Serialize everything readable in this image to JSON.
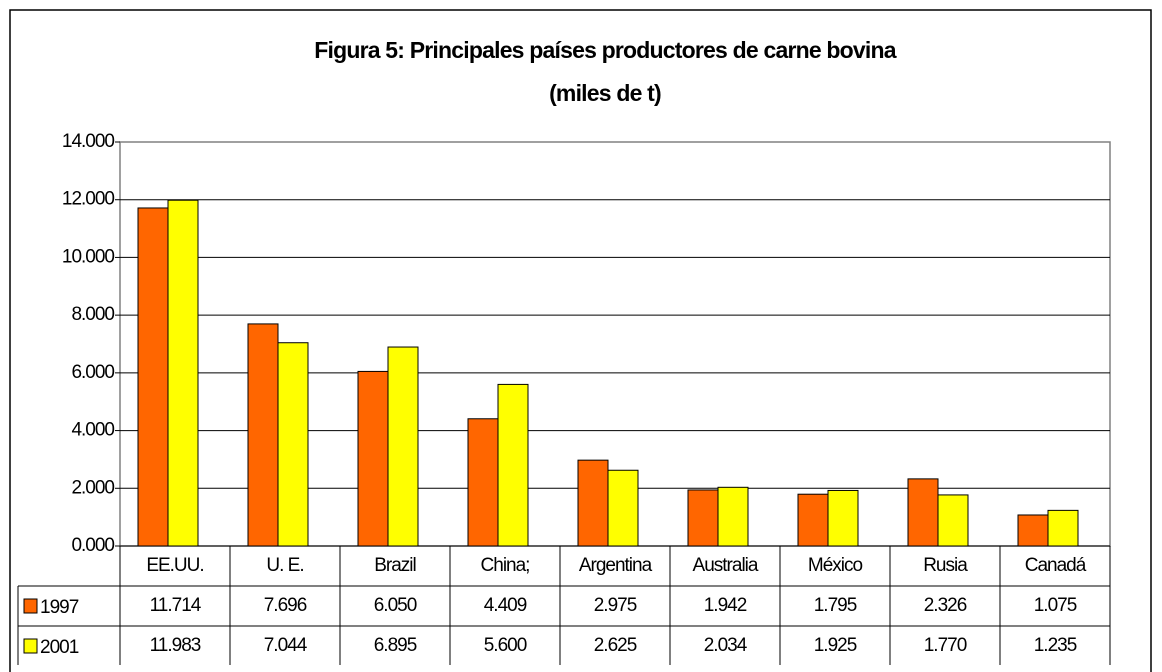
{
  "chart_data": {
    "type": "bar",
    "title": [
      "Figura  5: Principales países productores de carne bovina",
      "(miles de t)"
    ],
    "categories": [
      "EE.UU.",
      "U. E.",
      "Brazil",
      "China;",
      "Argentina",
      "Australia",
      "México",
      "Rusia",
      "Canadá"
    ],
    "series": [
      {
        "name": "1997",
        "color": "#ff6600",
        "values": [
          11714,
          7696,
          6050,
          4409,
          2975,
          1942,
          1795,
          2326,
          1075
        ],
        "value_labels": [
          "11.714",
          "7.696",
          "6.050",
          "4.409",
          "2.975",
          "1.942",
          "1.795",
          "2.326",
          "1.075"
        ]
      },
      {
        "name": "2001",
        "color": "#ffff00",
        "values": [
          11983,
          7044,
          6895,
          5600,
          2625,
          2034,
          1925,
          1770,
          1235
        ],
        "value_labels": [
          "11.983",
          "7.044",
          "6.895",
          "5.600",
          "2.625",
          "2.034",
          "1.925",
          "1.770",
          "1.235"
        ]
      }
    ],
    "ylim": [
      0,
      14000
    ],
    "yticks": [
      {
        "value": 0,
        "label": "0.000"
      },
      {
        "value": 2000,
        "label": "2.000"
      },
      {
        "value": 4000,
        "label": "4.000"
      },
      {
        "value": 6000,
        "label": "6.000"
      },
      {
        "value": 8000,
        "label": "8.000"
      },
      {
        "value": 10000,
        "label": "10.000"
      },
      {
        "value": 12000,
        "label": "12.000"
      },
      {
        "value": 14000,
        "label": "14.000"
      }
    ],
    "grid": true
  }
}
